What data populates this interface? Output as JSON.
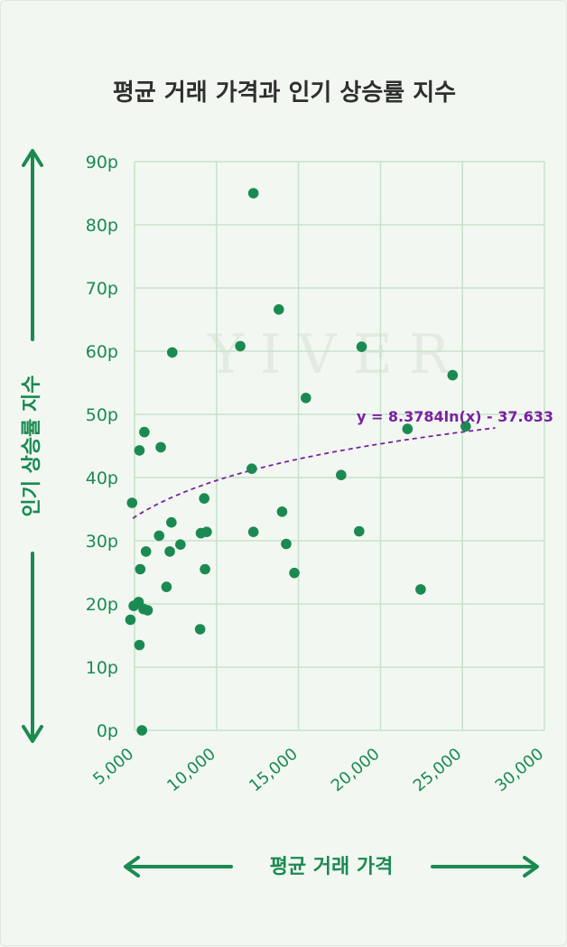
{
  "chart_data": {
    "type": "scatter",
    "title": "평균 거래 가격과 인기 상승률 지수",
    "xlabel": "평균 거래 가격",
    "ylabel": "인기 상승률 지수",
    "watermark": "YIVER",
    "xlim": [
      5000,
      30000
    ],
    "ylim": [
      0,
      90
    ],
    "xticks": [
      5000,
      10000,
      15000,
      20000,
      25000,
      30000
    ],
    "xtick_labels": [
      "5,000",
      "10,000",
      "15,000",
      "20,000",
      "25,000",
      "30,000"
    ],
    "yticks": [
      0,
      10,
      20,
      30,
      40,
      50,
      60,
      70,
      80,
      90
    ],
    "ytick_labels": [
      "0p",
      "10p",
      "20p",
      "30p",
      "40p",
      "50p",
      "60p",
      "70p",
      "80p",
      "90p"
    ],
    "grid": true,
    "point_color": "#1b8a52",
    "trendline": {
      "type": "logarithmic",
      "a": 8.3784,
      "b": -37.633,
      "x_range": [
        4900,
        27000
      ],
      "label": "y = 8.3784ln(x) - 37.633",
      "color": "#7b1fa2"
    },
    "points": [
      {
        "x": 4750,
        "y": 17.5
      },
      {
        "x": 4850,
        "y": 36
      },
      {
        "x": 4950,
        "y": 19.7
      },
      {
        "x": 5250,
        "y": 20.3
      },
      {
        "x": 5300,
        "y": 13.5
      },
      {
        "x": 5300,
        "y": 44.3
      },
      {
        "x": 5350,
        "y": 25.5
      },
      {
        "x": 5450,
        "y": 0
      },
      {
        "x": 5550,
        "y": 19.2
      },
      {
        "x": 5600,
        "y": 47.2
      },
      {
        "x": 5700,
        "y": 28.3
      },
      {
        "x": 5800,
        "y": 19
      },
      {
        "x": 6500,
        "y": 30.8
      },
      {
        "x": 6600,
        "y": 44.8
      },
      {
        "x": 6950,
        "y": 22.7
      },
      {
        "x": 7150,
        "y": 28.3
      },
      {
        "x": 7250,
        "y": 32.9
      },
      {
        "x": 7300,
        "y": 59.8
      },
      {
        "x": 7800,
        "y": 29.4
      },
      {
        "x": 9000,
        "y": 16
      },
      {
        "x": 9050,
        "y": 31.2
      },
      {
        "x": 9250,
        "y": 36.7
      },
      {
        "x": 9300,
        "y": 25.5
      },
      {
        "x": 9400,
        "y": 31.4
      },
      {
        "x": 11450,
        "y": 60.8
      },
      {
        "x": 12150,
        "y": 41.4
      },
      {
        "x": 12250,
        "y": 85
      },
      {
        "x": 12250,
        "y": 31.4
      },
      {
        "x": 13800,
        "y": 66.6
      },
      {
        "x": 14000,
        "y": 34.6
      },
      {
        "x": 14250,
        "y": 29.5
      },
      {
        "x": 14750,
        "y": 24.9
      },
      {
        "x": 15450,
        "y": 52.6
      },
      {
        "x": 17600,
        "y": 40.4
      },
      {
        "x": 18700,
        "y": 31.5
      },
      {
        "x": 18850,
        "y": 60.7
      },
      {
        "x": 21650,
        "y": 47.7
      },
      {
        "x": 22450,
        "y": 22.3
      },
      {
        "x": 24400,
        "y": 56.2
      },
      {
        "x": 25200,
        "y": 48.1
      }
    ]
  }
}
